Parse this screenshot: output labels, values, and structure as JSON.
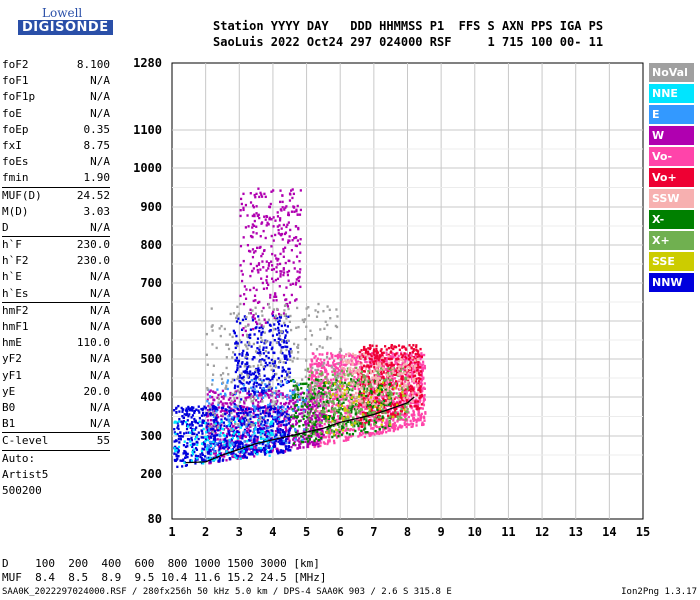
{
  "logo": {
    "top": "Lowell",
    "bottom": "DIGISONDE"
  },
  "header": {
    "line1": "Station YYYY DAY   DDD HHMMSS P1  FFS S AXN PPS IGA PS",
    "line2": "SaoLuis 2022 Oct24 297 024000 RSF     1 715 100 00- 11"
  },
  "params": [
    {
      "label": "foF2",
      "value": "8.100"
    },
    {
      "label": "foF1",
      "value": "N/A"
    },
    {
      "label": "foF1p",
      "value": "N/A"
    },
    {
      "label": "foE",
      "value": "N/A"
    },
    {
      "label": "foEp",
      "value": "0.35"
    },
    {
      "label": "fxI",
      "value": "8.75"
    },
    {
      "label": "foEs",
      "value": "N/A"
    },
    {
      "label": "fmin",
      "value": "1.90"
    },
    {
      "sep": true
    },
    {
      "label": "MUF(D)",
      "value": "24.52"
    },
    {
      "label": "M(D)",
      "value": "3.03"
    },
    {
      "label": "D",
      "value": "N/A"
    },
    {
      "sep": true
    },
    {
      "label": "h`F",
      "value": "230.0"
    },
    {
      "label": "h`F2",
      "value": "230.0"
    },
    {
      "label": "h`E",
      "value": "N/A"
    },
    {
      "label": "h`Es",
      "value": "N/A"
    },
    {
      "sep": true
    },
    {
      "label": "hmF2",
      "value": "N/A"
    },
    {
      "label": "hmF1",
      "value": "N/A"
    },
    {
      "label": "hmE",
      "value": "110.0"
    },
    {
      "label": "yF2",
      "value": "N/A"
    },
    {
      "label": "yF1",
      "value": "N/A"
    },
    {
      "label": "yE",
      "value": "20.0"
    },
    {
      "label": "B0",
      "value": "N/A"
    },
    {
      "label": "B1",
      "value": "N/A"
    },
    {
      "sep": true
    },
    {
      "label": "C-level",
      "value": "55"
    },
    {
      "sep": true
    },
    {
      "label": "Auto:",
      "value": ""
    },
    {
      "label": "Artist5",
      "value": ""
    },
    {
      "label": "500200",
      "value": ""
    }
  ],
  "legend": [
    {
      "label": "NoVal",
      "color": "#a0a0a0"
    },
    {
      "label": "NNE",
      "color": "#00e5ff"
    },
    {
      "label": "E",
      "color": "#3399ff"
    },
    {
      "label": "W",
      "color": "#b000b0"
    },
    {
      "label": "Vo-",
      "color": "#ff44aa"
    },
    {
      "label": "Vo+",
      "color": "#ee0033"
    },
    {
      "label": "SSW",
      "color": "#f7b0b0"
    },
    {
      "label": "X-",
      "color": "#008000"
    },
    {
      "label": "X+",
      "color": "#70b050"
    },
    {
      "label": "SSE",
      "color": "#cccc00"
    },
    {
      "label": "NNW",
      "color": "#0000dd"
    }
  ],
  "bottom": {
    "d_line": "D    100  200  400  600  800 1000 1500 3000 [km]",
    "muf_line": "MUF  8.4  8.5  8.9  9.5 10.4 11.6 15.2 24.5 [MHz]"
  },
  "footer": {
    "left": "SAA0K_2022297024000.RSF / 280fx256h 50 kHz 5.0 km / DPS-4 SAA0K 903 / 2.6 S 315.8 E",
    "right": "Ion2Png 1.3.17"
  },
  "chart_data": {
    "type": "scatter",
    "x_ticks": [
      1,
      2,
      3,
      4,
      5,
      6,
      7,
      8,
      9,
      10,
      11,
      12,
      13,
      14,
      15
    ],
    "y_ticks": [
      80,
      200,
      300,
      400,
      500,
      600,
      700,
      800,
      900,
      1000,
      1100,
      1280
    ],
    "xlim": [
      1,
      15
    ],
    "ylim": [
      80,
      1280
    ],
    "grid": true,
    "trace": {
      "color": "#000000",
      "x": [
        1.4,
        2.0,
        2.5,
        3.0,
        3.5,
        4.0,
        4.5,
        5.0,
        5.5,
        6.0,
        6.5,
        7.0,
        7.5,
        8.0,
        8.2
      ],
      "y": [
        230,
        232,
        250,
        265,
        280,
        290,
        300,
        310,
        320,
        335,
        345,
        355,
        370,
        385,
        400
      ]
    },
    "clusters": [
      {
        "series": "Vo-",
        "x": [
          5.0,
          8.5
        ],
        "y": [
          270,
          520
        ],
        "density": 1400
      },
      {
        "series": "Vo+",
        "x": [
          6.5,
          8.4
        ],
        "y": [
          320,
          540
        ],
        "density": 500
      },
      {
        "series": "W",
        "x": [
          2.0,
          5.5
        ],
        "y": [
          230,
          420
        ],
        "density": 700
      },
      {
        "series": "NNW",
        "x": [
          1.0,
          4.5
        ],
        "y": [
          220,
          380
        ],
        "density": 700
      },
      {
        "series": "NNW",
        "x": [
          2.8,
          4.5
        ],
        "y": [
          380,
          620
        ],
        "density": 300
      },
      {
        "series": "W",
        "x": [
          3.0,
          4.8
        ],
        "y": [
          550,
          950
        ],
        "density": 300
      },
      {
        "series": "X-",
        "x": [
          4.5,
          7.5
        ],
        "y": [
          280,
          450
        ],
        "density": 350
      },
      {
        "series": "X+",
        "x": [
          5.0,
          8.0
        ],
        "y": [
          300,
          480
        ],
        "density": 250
      },
      {
        "series": "E",
        "x": [
          2.0,
          5.0
        ],
        "y": [
          240,
          450
        ],
        "density": 150
      },
      {
        "series": "NNE",
        "x": [
          1.0,
          4.0
        ],
        "y": [
          220,
          350
        ],
        "density": 120
      },
      {
        "series": "SSW",
        "x": [
          6.0,
          8.3
        ],
        "y": [
          350,
          520
        ],
        "density": 200
      },
      {
        "series": "NoVal",
        "x": [
          2.0,
          6.0
        ],
        "y": [
          300,
          650
        ],
        "density": 300
      },
      {
        "series": "SSE",
        "x": [
          5.5,
          8.0
        ],
        "y": [
          300,
          450
        ],
        "density": 60
      }
    ]
  }
}
